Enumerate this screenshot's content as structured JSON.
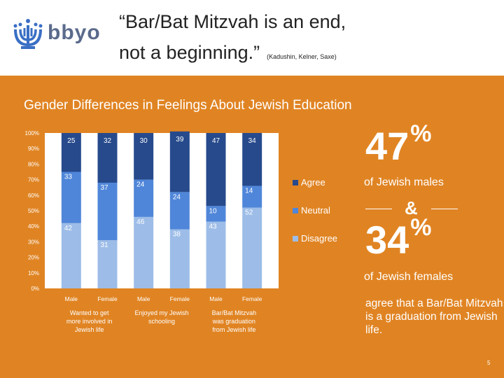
{
  "header": {
    "logo_text": "bbyo",
    "title_line1": "“Bar/Bat Mitzvah is an end,",
    "title_line2": "not a beginning.”",
    "citation": "(Kadushin, Kelner, Saxe)"
  },
  "subtitle": "Gender Differences in Feelings About Jewish Education",
  "chart_data": {
    "type": "bar",
    "stacked": true,
    "percent": true,
    "categories": [
      "Male",
      "Female",
      "Male",
      "Female",
      "Male",
      "Female"
    ],
    "groups": [
      "Wanted to get more involved in Jewish life",
      "Enjoyed my Jewish schooling",
      "Bar/Bat Mitzvah was graduation from Jewish life"
    ],
    "series": [
      {
        "name": "Disagree",
        "values": [
          42,
          31,
          46,
          38,
          43,
          52
        ],
        "color": "#9dbde8"
      },
      {
        "name": "Neutral",
        "values": [
          33,
          37,
          24,
          24,
          10,
          14
        ],
        "color": "#4f86d9"
      },
      {
        "name": "Agree",
        "values": [
          25,
          32,
          30,
          39,
          47,
          34
        ],
        "color": "#274a8c"
      }
    ],
    "yticks": [
      "0%",
      "10%",
      "20%",
      "30%",
      "40%",
      "50%",
      "60%",
      "70%",
      "80%",
      "90%",
      "100%"
    ],
    "ylim": [
      0,
      100
    ],
    "legend_position": "right",
    "grid": false
  },
  "side": {
    "pct1": "47",
    "pct_sign": "%",
    "label1": "of Jewish males",
    "amp": "&",
    "pct2": "34",
    "label2": "of Jewish females",
    "statement": "agree that a Bar/Bat Mitzvah is a graduation from Jewish life."
  },
  "page_number": "5"
}
